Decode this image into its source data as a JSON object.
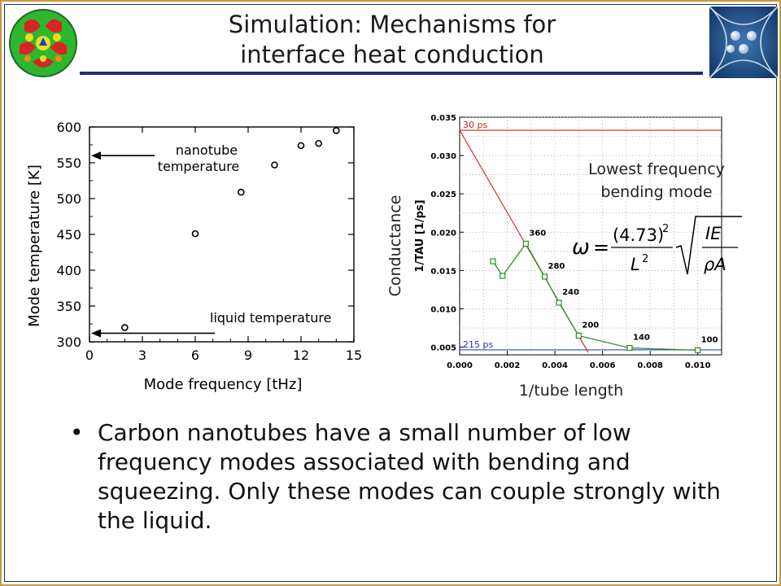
{
  "slide": {
    "title_line1": "Simulation: Mechanisms for",
    "title_line2": "interface heat conduction",
    "bullets": [
      "Carbon nanotubes have a small number of low frequency modes associated with bending and squeezing. Only these modes can couple strongly with the liquid."
    ],
    "bullet_glyph": "•",
    "logo_left_icon": "spherical-mode-pattern-icon",
    "logo_right_icon": "network-nodes-logo-icon",
    "accent_color": "#1b2f6e",
    "border_color": "#c59a3a"
  },
  "chart_data": [
    {
      "type": "scatter",
      "title": "",
      "xlabel": "Mode frequency [tHz]",
      "ylabel": "Mode temperature [K]",
      "xlim": [
        0,
        15
      ],
      "ylim": [
        300,
        600
      ],
      "x_ticks": [
        0,
        3,
        6,
        9,
        12,
        15
      ],
      "y_ticks": [
        300,
        350,
        400,
        450,
        500,
        550,
        600
      ],
      "series": [
        {
          "points": [
            {
              "x": 2.0,
              "y": 320
            },
            {
              "x": 6.0,
              "y": 451
            },
            {
              "x": 8.6,
              "y": 509
            },
            {
              "x": 10.5,
              "y": 547
            },
            {
              "x": 12.0,
              "y": 574
            },
            {
              "x": 13.0,
              "y": 577
            },
            {
              "x": 14.0,
              "y": 595
            }
          ]
        }
      ],
      "annotations": [
        {
          "text": "nanotube",
          "text2": "temperature",
          "y": 560
        },
        {
          "text": "liquid temperature",
          "y": 312
        }
      ]
    },
    {
      "type": "line",
      "title": "",
      "xlabel": "1/tube length",
      "ylabel": "1/TAU [1/ps]",
      "ylabel_outer": "Conductance",
      "xlim": [
        0,
        0.011
      ],
      "ylim": [
        0.004,
        0.035
      ],
      "x_ticks": [
        "0.000",
        "0.002",
        "0.004",
        "0.006",
        "0.008",
        "0.010"
      ],
      "x_tick_values": [
        0,
        0.002,
        0.004,
        0.006,
        0.008,
        0.01
      ],
      "y_ticks": [
        "0.005",
        "0.010",
        "0.015",
        "0.020",
        "0.025",
        "0.030",
        "0.035"
      ],
      "y_tick_values": [
        0.005,
        0.01,
        0.015,
        0.02,
        0.025,
        0.03,
        0.035
      ],
      "grid": true,
      "series": [
        {
          "color": "#2e8b2e",
          "points": [
            {
              "x": 0.0014,
              "y": 0.0162
            },
            {
              "x": 0.0018,
              "y": 0.0143
            },
            {
              "x": 0.00278,
              "y": 0.0185,
              "label": "360"
            },
            {
              "x": 0.00357,
              "y": 0.0142,
              "label": "280"
            },
            {
              "x": 0.00417,
              "y": 0.0108,
              "label": "240"
            },
            {
              "x": 0.005,
              "y": 0.0065,
              "label": "200"
            },
            {
              "x": 0.00714,
              "y": 0.0049,
              "label": "140"
            },
            {
              "x": 0.01,
              "y": 0.0046,
              "label": "100"
            }
          ]
        }
      ],
      "reference_lines": [
        {
          "label": "30 ps",
          "y": 0.0333,
          "color": "#cc2222"
        },
        {
          "label": "215 ps",
          "y": 0.00465,
          "color": "#2233aa"
        }
      ],
      "fit_line": {
        "x": [
          0.0,
          0.0054
        ],
        "y": [
          0.0333,
          0.0043
        ],
        "color": "#cc2222"
      },
      "annotations": [
        {
          "text": "Lowest frequency"
        },
        {
          "text": "bending mode"
        }
      ]
    }
  ]
}
